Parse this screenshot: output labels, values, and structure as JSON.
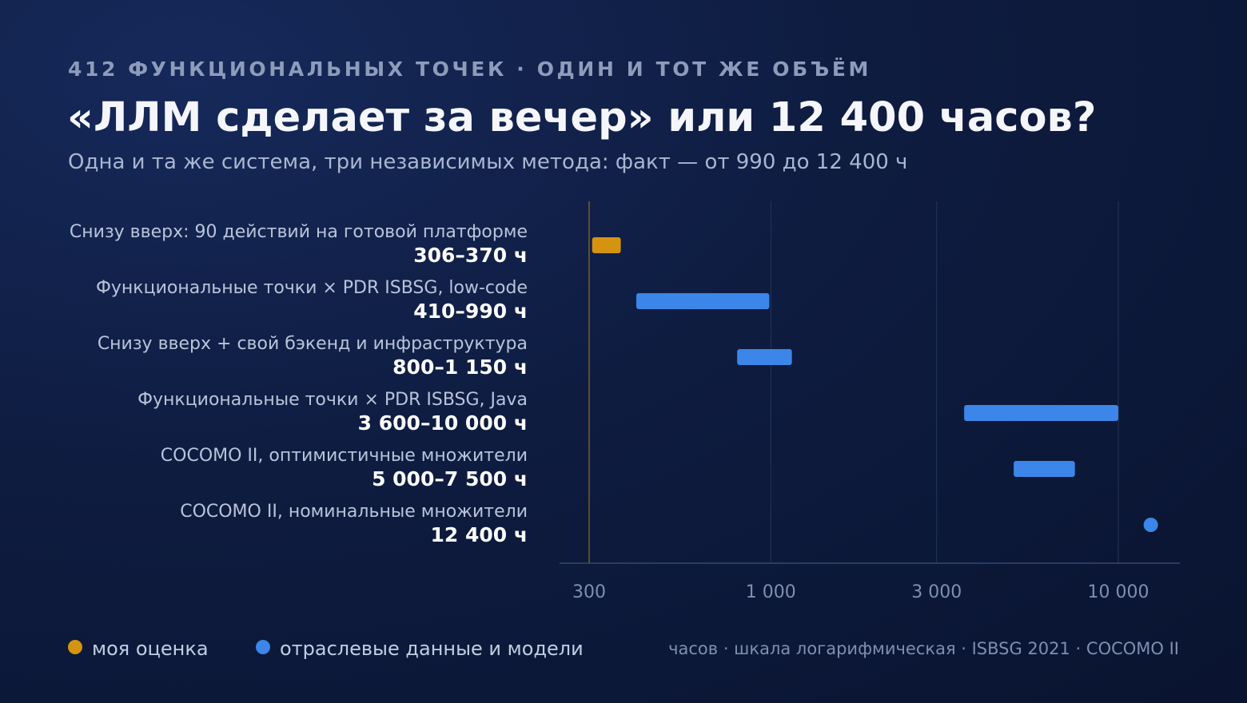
{
  "header": {
    "eyebrow": "412 ФУНКЦИОНАЛЬНЫХ ТОЧЕК · ОДИН И ТОТ ЖЕ ОБЪЁМ",
    "title": "«ЛЛМ сделает за вечер» или 12 400 часов?",
    "subtitle": "Одна и та же система, три независимых метода: факт — от 990 до 12 400 ч"
  },
  "colors": {
    "mine": "#d4940f",
    "industry": "#3b86e8",
    "grid": "#243559",
    "axis": "#34476e"
  },
  "chart_data": {
    "type": "bar",
    "orientation": "horizontal-range",
    "x_scale": "log",
    "xlim": [
      250,
      15000
    ],
    "x_ticks": [
      300,
      1000,
      3000,
      10000
    ],
    "x_tick_labels": [
      "300",
      "1 000",
      "3 000",
      "10 000"
    ],
    "reference_line": 300,
    "rows": [
      {
        "label": "Снизу вверх: 90 действий на готовой платформе",
        "value_text": "306–370 ч",
        "low": 306,
        "high": 370,
        "group": "mine"
      },
      {
        "label": "Функциональные точки × PDR ISBSG, low-code",
        "value_text": "410–990 ч",
        "low": 410,
        "high": 990,
        "group": "industry"
      },
      {
        "label": "Снизу вверх + свой бэкенд и инфраструктура",
        "value_text": "800–1 150 ч",
        "low": 800,
        "high": 1150,
        "group": "industry"
      },
      {
        "label": "Функциональные точки × PDR ISBSG, Java",
        "value_text": "3 600–10 000 ч",
        "low": 3600,
        "high": 10000,
        "group": "industry"
      },
      {
        "label": "COCOMO II, оптимистичные множители",
        "value_text": "5 000–7 500 ч",
        "low": 5000,
        "high": 7500,
        "group": "industry"
      },
      {
        "label": "COCOMO II, номинальные множители",
        "value_text": "12 400 ч",
        "low": 12400,
        "high": 12400,
        "group": "industry"
      }
    ]
  },
  "legend": {
    "mine_label": "моя оценка",
    "industry_label": "отраслевые данные и модели",
    "note": "часов · шкала логарифмическая · ISBSG 2021 · COCOMO II"
  }
}
